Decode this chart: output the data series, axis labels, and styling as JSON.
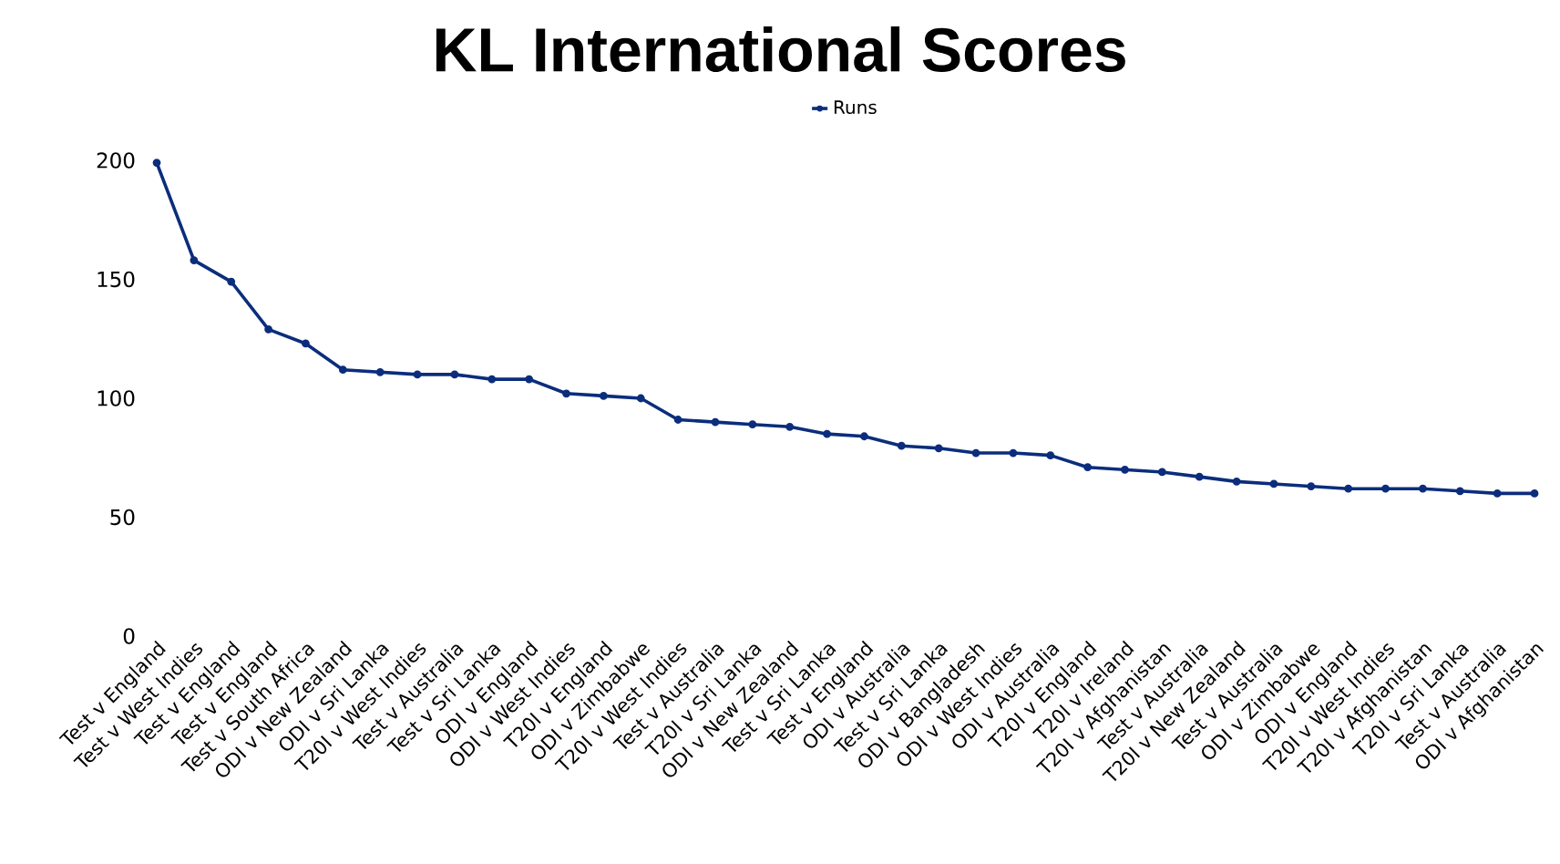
{
  "chart_data": {
    "type": "line",
    "title": "KL International Scores",
    "categories": [
      "Test v England",
      "Test v West Indies",
      "Test v England",
      "Test v England",
      "Test v South Africa",
      "ODI v New Zealand",
      "ODI v Sri Lanka",
      "T20I v West Indies",
      "Test v Australia",
      "Test v Sri Lanka",
      "ODI v England",
      "ODI v West Indies",
      "T20I v England",
      "ODI v Zimbabwe",
      "T20I v West Indies",
      "Test v Australia",
      "T20I v Sri Lanka",
      "ODI v New Zealand",
      "Test v Sri Lanka",
      "Test v England",
      "ODI v Australia",
      "Test v Sri Lanka",
      "ODI v Bangladesh",
      "ODI v West Indies",
      "ODI v Australia",
      "T20I v England",
      "T20I v Ireland",
      "T20I v Afghanistan",
      "Test v Australia",
      "T20I v New Zealand",
      "Test v Australia",
      "ODI v Zimbabwe",
      "ODI v England",
      "T20I v West Indies",
      "T20I v Afghanistan",
      "T20I v Sri Lanka",
      "Test v Australia",
      "ODI v Afghanistan"
    ],
    "series": [
      {
        "name": "Runs",
        "color": "#0b2d7c",
        "values": [
          199,
          158,
          149,
          129,
          123,
          112,
          111,
          110,
          110,
          108,
          108,
          102,
          101,
          100,
          91,
          90,
          89,
          88,
          85,
          84,
          80,
          79,
          77,
          77,
          76,
          71,
          70,
          69,
          67,
          65,
          64,
          63,
          62,
          62,
          62,
          61,
          60,
          60
        ]
      }
    ],
    "ylim": [
      0,
      200
    ],
    "yticks": [
      0,
      50,
      100,
      150,
      200
    ],
    "legend": "top",
    "marker": "circle",
    "line_style": "solid"
  }
}
